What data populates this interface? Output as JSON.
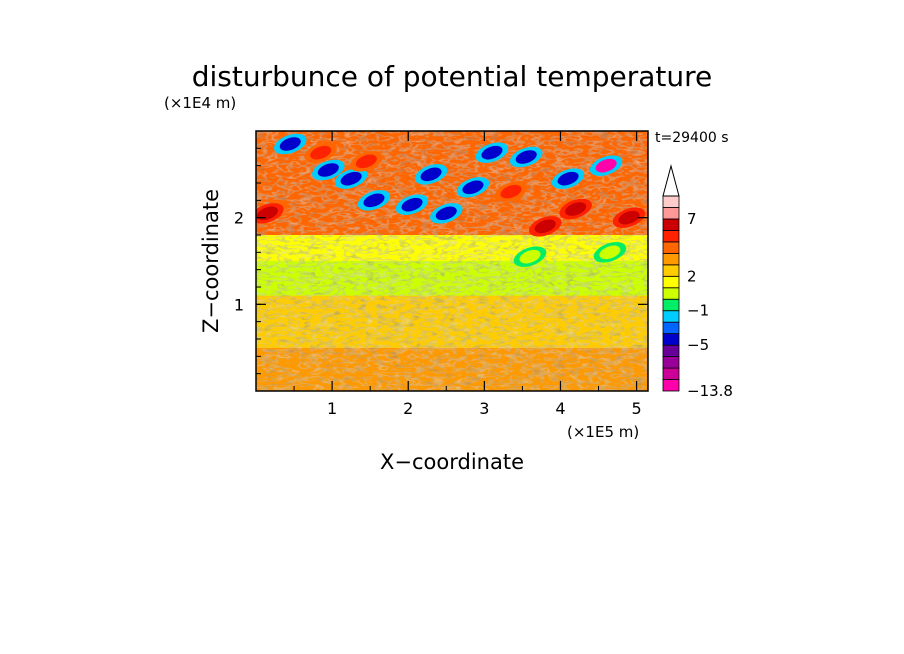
{
  "chart_data": {
    "type": "heatmap",
    "title": "disturbunce of potential temperature",
    "time_label": "t=29400 s",
    "xlabel": "X−coordinate",
    "ylabel": "Z−coordinate",
    "x_unit": "(×1E5 m)",
    "y_unit": "(×1E4 m)",
    "xlim": [
      0,
      5.15
    ],
    "ylim": [
      0,
      3.0
    ],
    "x_ticks": [
      1,
      2,
      3,
      4,
      5
    ],
    "y_ticks": [
      1,
      2
    ],
    "x_tick_labels": [
      "1",
      "2",
      "3",
      "4",
      "5"
    ],
    "y_tick_labels": [
      "1",
      "2"
    ],
    "colorbar": {
      "labels": [
        {
          "value": 7,
          "text": "7"
        },
        {
          "value": 2,
          "text": "2"
        },
        {
          "value": -1,
          "text": "−1"
        },
        {
          "value": -5,
          "text": "−5"
        },
        {
          "value": -13.8,
          "text": "−13.8"
        }
      ],
      "min": -13.8,
      "extend": "max",
      "levels": [
        {
          "color": "#ff00aa"
        },
        {
          "color": "#cc0099"
        },
        {
          "color": "#990099"
        },
        {
          "color": "#660099"
        },
        {
          "color": "#0000cc"
        },
        {
          "color": "#0066ff"
        },
        {
          "color": "#00ccff"
        },
        {
          "color": "#00ee66"
        },
        {
          "color": "#ccff00"
        },
        {
          "color": "#ffff00"
        },
        {
          "color": "#ffcc00"
        },
        {
          "color": "#ff9900"
        },
        {
          "color": "#ff6600"
        },
        {
          "color": "#ff2200"
        },
        {
          "color": "#cc0000"
        },
        {
          "color": "#ff9999"
        },
        {
          "color": "#ffcccc"
        }
      ]
    },
    "regions": [
      {
        "z_range": [
          0.0,
          0.5
        ],
        "dominant_value": 3.5
      },
      {
        "z_range": [
          0.5,
          1.2
        ],
        "dominant_value": 2.5
      },
      {
        "z_range": [
          1.1,
          1.5
        ],
        "dominant_value": 0.5
      },
      {
        "z_range": [
          1.5,
          1.8
        ],
        "dominant_value": 1.5
      },
      {
        "z_range": [
          1.8,
          3.0
        ],
        "dominant_value": 4.0
      }
    ],
    "features": [
      {
        "x": 0.45,
        "z": 2.85,
        "value": -5
      },
      {
        "x": 0.95,
        "z": 2.55,
        "value": -5
      },
      {
        "x": 1.25,
        "z": 2.45,
        "value": -5
      },
      {
        "x": 1.55,
        "z": 2.2,
        "value": -5
      },
      {
        "x": 2.05,
        "z": 2.15,
        "value": -5
      },
      {
        "x": 2.3,
        "z": 2.5,
        "value": -5
      },
      {
        "x": 2.5,
        "z": 2.05,
        "value": -5
      },
      {
        "x": 2.85,
        "z": 2.35,
        "value": -5
      },
      {
        "x": 3.1,
        "z": 2.75,
        "value": -5
      },
      {
        "x": 3.55,
        "z": 2.7,
        "value": -5
      },
      {
        "x": 4.1,
        "z": 2.45,
        "value": -5
      },
      {
        "x": 4.6,
        "z": 2.6,
        "value": -13
      },
      {
        "x": 0.15,
        "z": 2.05,
        "value": 6
      },
      {
        "x": 0.85,
        "z": 2.75,
        "value": 5
      },
      {
        "x": 1.45,
        "z": 2.65,
        "value": 5
      },
      {
        "x": 3.35,
        "z": 2.3,
        "value": 5
      },
      {
        "x": 3.8,
        "z": 1.9,
        "value": 6
      },
      {
        "x": 4.2,
        "z": 2.1,
        "value": 6
      },
      {
        "x": 4.9,
        "z": 2.0,
        "value": 6
      },
      {
        "x": 3.6,
        "z": 1.55,
        "value": 0
      },
      {
        "x": 4.65,
        "z": 1.6,
        "value": 0
      }
    ]
  }
}
